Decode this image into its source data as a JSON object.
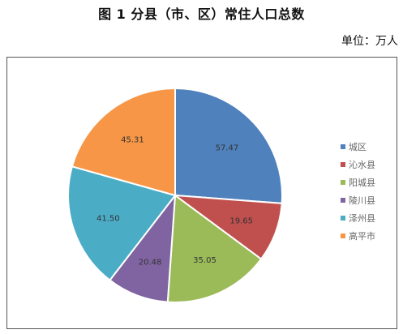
{
  "title": "图 1   分县（市、区）常住人口总数",
  "unit_label": "单位：万人",
  "chart_data": {
    "type": "pie",
    "title": "图 1   分县（市、区）常住人口总数",
    "unit": "万人",
    "legend_position": "right",
    "categories": [
      "城区",
      "沁水县",
      "阳城县",
      "陵川县",
      "泽州县",
      "高平市"
    ],
    "values": [
      57.47,
      19.65,
      35.05,
      20.48,
      41.5,
      45.31
    ],
    "value_labels": [
      "57.47",
      "19.65",
      "35.05",
      "20.48",
      "41.50",
      "45.31"
    ],
    "colors": [
      "#4F81BD",
      "#C0504D",
      "#9BBB59",
      "#8064A2",
      "#4BACC6",
      "#F79646"
    ]
  }
}
